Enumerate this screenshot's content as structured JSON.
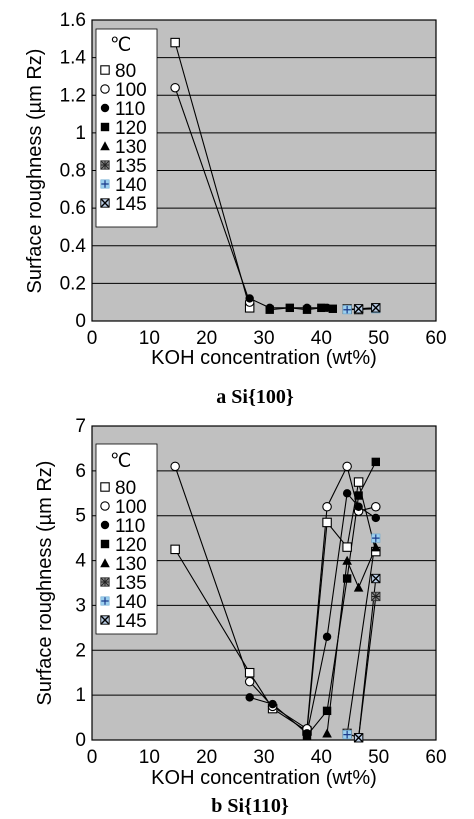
{
  "chart_data": [
    {
      "type": "line",
      "caption": "a  Si{100}",
      "xlabel": "KOH concentration (wt%)",
      "ylabel": "Surface roughness (µm Rz)",
      "xlim": [
        0,
        60
      ],
      "ylim": [
        0,
        1.6
      ],
      "xticks": [
        0,
        10,
        20,
        30,
        40,
        50,
        60
      ],
      "yticks": [
        0,
        0.2,
        0.4,
        0.6,
        0.8,
        1,
        1.2,
        1.4,
        1.6
      ],
      "ytick_labels": [
        "0",
        "0.2",
        "0.4",
        "0.6",
        "0.8",
        "1",
        "1.2",
        "1.4",
        "1.6"
      ],
      "grid": "horizontal",
      "legend": {
        "title": "℃",
        "placement": "top-left"
      },
      "series": [
        {
          "name": "80",
          "marker": "open-square",
          "points": [
            [
              14.5,
              1.48
            ],
            [
              27.5,
              0.07
            ]
          ]
        },
        {
          "name": "100",
          "marker": "open-circle",
          "points": [
            [
              14.5,
              1.24
            ],
            [
              27.5,
              0.1
            ]
          ]
        },
        {
          "name": "110",
          "marker": "filled-circle",
          "points": [
            [
              27.5,
              0.12
            ],
            [
              31,
              0.07
            ],
            [
              37.5,
              0.07
            ],
            [
              41,
              0.07
            ]
          ]
        },
        {
          "name": "120",
          "marker": "filled-square",
          "points": [
            [
              31,
              0.06
            ],
            [
              34.5,
              0.07
            ],
            [
              37.5,
              0.06
            ],
            [
              40,
              0.07
            ],
            [
              42,
              0.065
            ]
          ]
        },
        {
          "name": "130",
          "marker": "filled-triangle",
          "points": [
            [
              44.5,
              0.06
            ],
            [
              46.5,
              0.065
            ],
            [
              49.5,
              0.07
            ]
          ]
        },
        {
          "name": "135",
          "marker": "asterisk-square",
          "points": [
            [
              44.5,
              0.065
            ],
            [
              46.5,
              0.06
            ],
            [
              49.5,
              0.07
            ]
          ]
        },
        {
          "name": "140",
          "marker": "plus-square",
          "points": [
            [
              44.5,
              0.06
            ],
            [
              49.5,
              0.065
            ]
          ]
        },
        {
          "name": "145",
          "marker": "x-square",
          "points": [
            [
              46.5,
              0.065
            ],
            [
              49.5,
              0.07
            ]
          ]
        }
      ]
    },
    {
      "type": "line",
      "caption": "b  Si{110}",
      "xlabel": "KOH concentration (wt%)",
      "ylabel": "Surface roughness (µm Rz)",
      "xlim": [
        0,
        60
      ],
      "ylim": [
        0,
        7
      ],
      "xticks": [
        0,
        10,
        20,
        30,
        40,
        50,
        60
      ],
      "yticks": [
        0,
        1,
        2,
        3,
        4,
        5,
        6,
        7
      ],
      "ytick_labels": [
        "0",
        "1",
        "2",
        "3",
        "4",
        "5",
        "6",
        "7"
      ],
      "grid": "horizontal",
      "legend": {
        "title": "℃",
        "placement": "top-left"
      },
      "series": [
        {
          "name": "80",
          "marker": "open-square",
          "points": [
            [
              14.5,
              4.25
            ],
            [
              27.5,
              1.5
            ],
            [
              31.5,
              0.7
            ],
            [
              37.5,
              0.2
            ],
            [
              41,
              4.85
            ],
            [
              44.5,
              4.3
            ],
            [
              46.5,
              5.75
            ],
            [
              49.5,
              4.2
            ]
          ]
        },
        {
          "name": "100",
          "marker": "open-circle",
          "points": [
            [
              14.5,
              6.1
            ],
            [
              27.5,
              1.3
            ],
            [
              31.5,
              0.75
            ],
            [
              37.5,
              0.25
            ],
            [
              41,
              5.2
            ],
            [
              44.5,
              6.1
            ],
            [
              46.5,
              5.1
            ],
            [
              49.5,
              5.2
            ]
          ]
        },
        {
          "name": "110",
          "marker": "filled-circle",
          "points": [
            [
              27.5,
              0.95
            ],
            [
              31.5,
              0.8
            ],
            [
              37.5,
              0.15
            ],
            [
              41,
              2.3
            ],
            [
              44.5,
              5.5
            ],
            [
              46.5,
              5.2
            ],
            [
              49.5,
              4.95
            ]
          ]
        },
        {
          "name": "120",
          "marker": "filled-square",
          "points": [
            [
              37.5,
              0.1
            ],
            [
              41,
              0.65
            ],
            [
              44.5,
              3.6
            ],
            [
              46.5,
              5.45
            ],
            [
              49.5,
              6.2
            ]
          ]
        },
        {
          "name": "130",
          "marker": "filled-triangle",
          "points": [
            [
              41,
              0.15
            ],
            [
              44.5,
              4.0
            ],
            [
              46.5,
              3.4
            ],
            [
              49.5,
              4.3
            ]
          ]
        },
        {
          "name": "135",
          "marker": "asterisk-square",
          "points": [
            [
              44.5,
              0.15
            ],
            [
              46.5,
              0.05
            ],
            [
              49.5,
              3.2
            ]
          ]
        },
        {
          "name": "140",
          "marker": "plus-square",
          "points": [
            [
              44.5,
              0.12
            ],
            [
              49.5,
              4.5
            ]
          ]
        },
        {
          "name": "145",
          "marker": "x-square",
          "points": [
            [
              46.5,
              0.05
            ],
            [
              49.5,
              3.6
            ]
          ]
        }
      ]
    }
  ]
}
